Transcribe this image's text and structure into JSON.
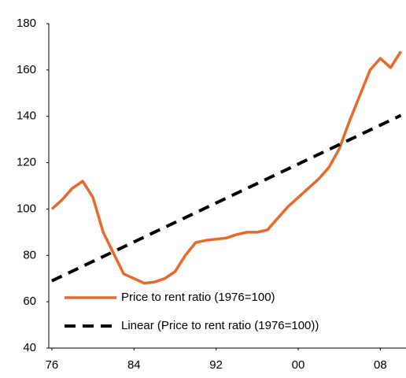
{
  "chart_data": {
    "type": "line",
    "x": [
      1976,
      1977,
      1978,
      1979,
      1980,
      1981,
      1982,
      1983,
      1984,
      1985,
      1986,
      1987,
      1988,
      1989,
      1990,
      1991,
      1992,
      1993,
      1994,
      1995,
      1996,
      1997,
      1998,
      1999,
      2000,
      2001,
      2002,
      2003,
      2004,
      2005,
      2006,
      2007,
      2008,
      2009,
      2010
    ],
    "series": [
      {
        "name": "Price to rent ratio (1976=100)",
        "color": "#e8692a",
        "dash": false,
        "values": [
          100,
          104,
          109,
          112,
          105,
          90,
          81,
          72,
          70,
          68,
          68.5,
          70,
          73,
          80,
          85.5,
          86.5,
          87,
          87.5,
          89,
          90,
          90,
          91,
          96,
          101,
          105,
          109,
          113,
          118,
          126,
          138,
          149,
          160,
          165,
          161,
          168
        ]
      },
      {
        "name": "Linear (Price to rent ratio (1976=100))",
        "color": "#000000",
        "dash": true,
        "values": [
          69,
          71.1,
          73.2,
          75.3,
          77.4,
          79.5,
          81.6,
          83.7,
          85.8,
          87.9,
          90,
          92.1,
          94.2,
          96.3,
          98.4,
          100.5,
          102.6,
          104.7,
          106.8,
          108.9,
          111,
          113.1,
          115.2,
          117.3,
          119.4,
          121.5,
          123.6,
          125.7,
          127.8,
          129.9,
          132,
          134.1,
          136.2,
          138.3,
          140.4
        ]
      }
    ],
    "xlim": [
      1975.7,
      2010.5
    ],
    "xticks": [
      {
        "value": 1976,
        "label": "76"
      },
      {
        "value": 1984,
        "label": "84"
      },
      {
        "value": 1992,
        "label": "92"
      },
      {
        "value": 2000,
        "label": "00"
      },
      {
        "value": 2008,
        "label": "08"
      }
    ],
    "ylim": [
      40,
      180
    ],
    "yticks": [
      40,
      60,
      80,
      100,
      120,
      140,
      160,
      180
    ],
    "grid": false,
    "legend": "lower-left"
  }
}
